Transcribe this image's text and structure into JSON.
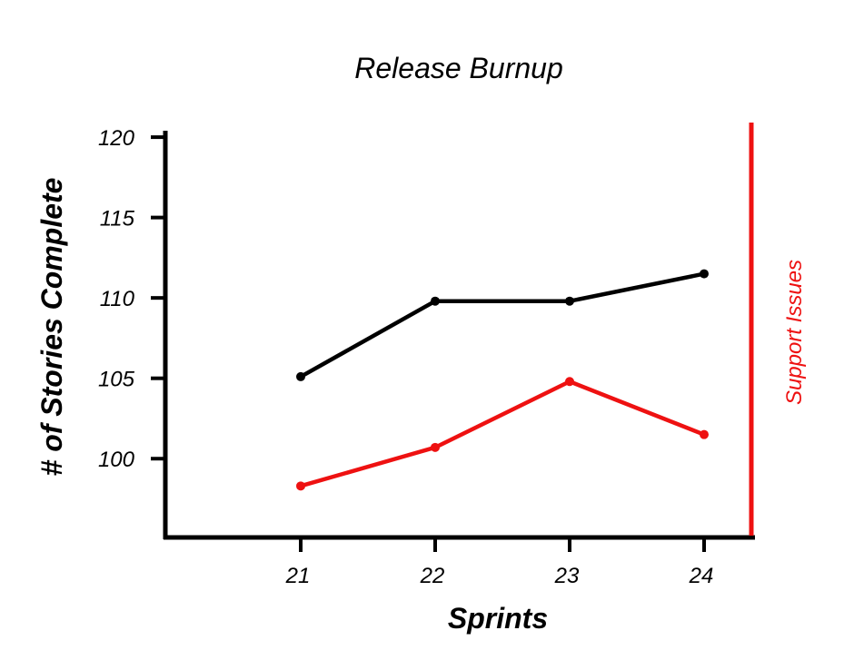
{
  "chart_data": {
    "type": "line",
    "title": "Release Burnup",
    "xlabel": "Sprints",
    "ylabel": "# of Stories Complete",
    "y2label": "Support Issues",
    "categories": [
      "21",
      "22",
      "23",
      "24"
    ],
    "yticks": [
      100,
      105,
      110,
      115,
      120
    ],
    "ylim": [
      95.1,
      120.4
    ],
    "grid": false,
    "series": [
      {
        "values": [
          105.1,
          109.8,
          109.8,
          111.5
        ],
        "color": "#000000"
      },
      {
        "values": [
          98.3,
          100.7,
          104.8,
          101.5
        ],
        "color": "#ee1111"
      }
    ],
    "colors": {
      "axis": "#000000",
      "secondary_axis": "#ee1111"
    }
  }
}
